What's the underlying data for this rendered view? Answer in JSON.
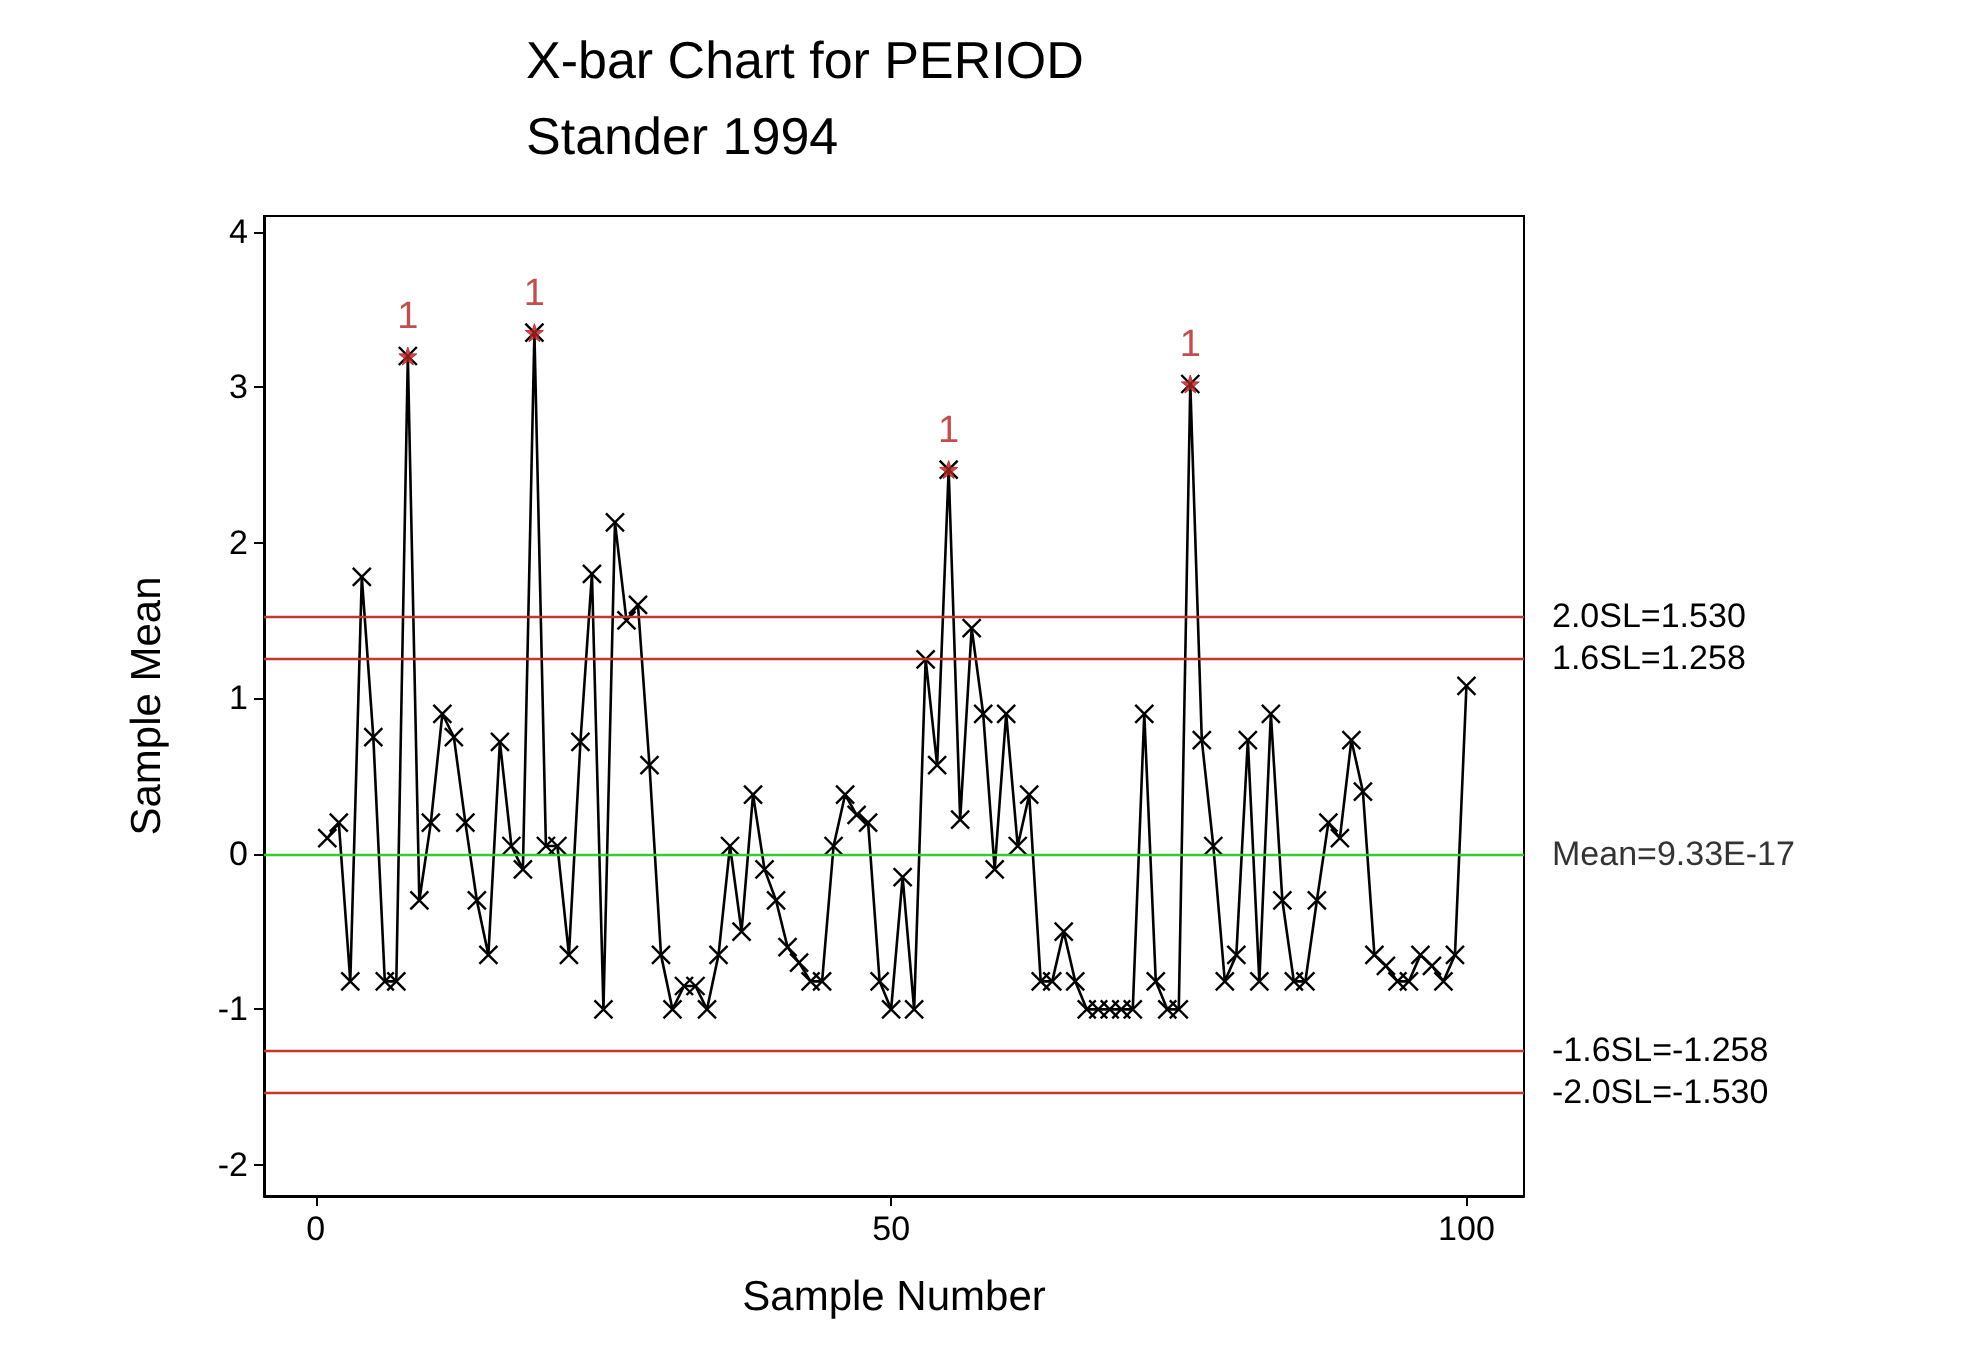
{
  "chart_data": {
    "type": "line",
    "title": "X-bar Chart for PERIOD",
    "subtitle": "Stander 1994",
    "xlabel": "Sample Number",
    "ylabel": "Sample Mean",
    "xlim": [
      -4.5,
      105
    ],
    "xticks": [
      0,
      50,
      100
    ],
    "ylim": [
      -2.2,
      4.1
    ],
    "yticks": [
      -2,
      -1,
      0,
      1,
      2,
      3,
      4
    ],
    "grid": false,
    "series": [
      {
        "color": "#000000",
        "marker": "cross",
        "line_style": "solid",
        "x": [
          1,
          2,
          3,
          4,
          5,
          6,
          7,
          8,
          9,
          10,
          11,
          12,
          13,
          14,
          15,
          16,
          17,
          18,
          19,
          20,
          21,
          22,
          23,
          24,
          25,
          26,
          27,
          28,
          29,
          30,
          31,
          32,
          33,
          34,
          35,
          36,
          37,
          38,
          39,
          40,
          41,
          42,
          43,
          44,
          45,
          46,
          47,
          48,
          49,
          50,
          51,
          52,
          53,
          54,
          55,
          56,
          57,
          58,
          59,
          60,
          61,
          62,
          63,
          64,
          65,
          66,
          67,
          68,
          69,
          70,
          71,
          72,
          73,
          74,
          75,
          76,
          77,
          78,
          79,
          80,
          81,
          82,
          83,
          84,
          85,
          86,
          87,
          88,
          89,
          90,
          91,
          92,
          93,
          94,
          95,
          96,
          97,
          98,
          99,
          100
        ],
        "values": [
          0.1,
          0.2,
          -0.82,
          1.78,
          0.75,
          -0.82,
          -0.82,
          3.2,
          -0.3,
          0.2,
          0.9,
          0.75,
          0.2,
          -0.3,
          -0.65,
          0.72,
          0.05,
          -0.1,
          3.35,
          0.05,
          0.05,
          -0.65,
          0.72,
          1.8,
          -1.0,
          2.13,
          1.5,
          1.6,
          0.57,
          -0.65,
          -1.0,
          -0.85,
          -0.85,
          -1.0,
          -0.65,
          0.05,
          -0.5,
          0.38,
          -0.1,
          -0.3,
          -0.6,
          -0.7,
          -0.82,
          -0.82,
          0.05,
          0.38,
          0.25,
          0.2,
          -0.82,
          -1.0,
          -0.15,
          -1.0,
          1.25,
          0.57,
          2.47,
          0.22,
          1.45,
          0.9,
          -0.1,
          0.9,
          0.05,
          0.38,
          -0.82,
          -0.82,
          -0.5,
          -0.82,
          -1.0,
          -1.0,
          -1.0,
          -1.0,
          -1.0,
          0.9,
          -0.82,
          -1.0,
          -1.0,
          3.02,
          0.73,
          0.05,
          -0.82,
          -0.65,
          0.73,
          -0.82,
          0.9,
          -0.3,
          -0.82,
          -0.82,
          -0.3,
          0.2,
          0.1,
          0.73,
          0.4,
          -0.65,
          -0.72,
          -0.82,
          -0.82,
          -0.65,
          -0.72,
          -0.82,
          -0.65,
          1.08
        ]
      },
      {
        "type": "scatter",
        "color": "#b22222",
        "marker": "star",
        "x": [
          8,
          19,
          55,
          76
        ],
        "values": [
          3.2,
          3.35,
          2.47,
          3.02
        ]
      }
    ],
    "annotations": [
      {
        "text": "1",
        "x": 8,
        "y": 3.2
      },
      {
        "text": "1",
        "x": 19,
        "y": 3.35
      },
      {
        "text": "1",
        "x": 55,
        "y": 2.47
      },
      {
        "text": "1",
        "x": 76,
        "y": 3.02
      },
      {
        "text": "Mean=9.33E-17",
        "x": 105,
        "y": 9.33e-17
      }
    ],
    "ref_lines": [
      {
        "axis": "y",
        "value": 1.53,
        "label": "2.0SL=1.530",
        "color": "#c0392b"
      },
      {
        "axis": "y",
        "value": 1.258,
        "label": "1.6SL=1.258",
        "color": "#c0392b"
      },
      {
        "axis": "y",
        "value": 9.33e-17,
        "color": "#33cc33"
      },
      {
        "axis": "y",
        "value": -1.258,
        "label": "-1.6SL=-1.258",
        "color": "#c0392b"
      },
      {
        "axis": "y",
        "value": -1.53,
        "label": "-2.0SL=-1.530",
        "color": "#c0392b"
      }
    ]
  }
}
